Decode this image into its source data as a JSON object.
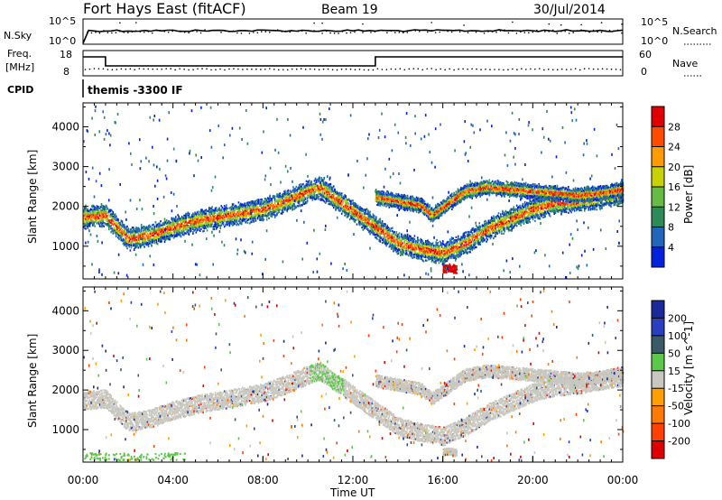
{
  "header": {
    "station": "Fort Hays East (fitACF)",
    "beam": "Beam 19",
    "date": "30/Jul/2014"
  },
  "noise_panel": {
    "left_label": "N.Sky",
    "right_label": "N.Search",
    "left_ticks": [
      "10^5",
      "10^0"
    ],
    "right_ticks": [
      "10^5",
      "10^0"
    ]
  },
  "freq_panel": {
    "left_label_1": "Freq.",
    "left_label_2": "[MHz]",
    "right_label": "Nave",
    "left_ticks": [
      "18",
      "8"
    ],
    "right_ticks": [
      "60",
      "0"
    ]
  },
  "cpid": {
    "label": "CPID",
    "value": "themis -3300 IF"
  },
  "time_axis": {
    "label": "Time UT",
    "ticks": [
      "00:00",
      "04:00",
      "08:00",
      "12:00",
      "16:00",
      "20:00",
      "00:00"
    ]
  },
  "chart_data": [
    {
      "type": "heatmap",
      "name": "power",
      "ylabel": "Slant Range [km]",
      "yticks": [
        1000,
        2000,
        3000,
        4000
      ],
      "ylim": [
        180,
        4600
      ],
      "xlim_hours": [
        0,
        24
      ],
      "colorbar_label": "Power [dB]",
      "colorbar_ticks": [
        "28",
        "24",
        "20",
        "16",
        "12",
        "8",
        "4"
      ],
      "colors": [
        "#0022dd",
        "#2266bb",
        "#2e8b57",
        "#66bb44",
        "#c8d200",
        "#ff9a00",
        "#ff4a00",
        "#e00000"
      ],
      "scatter_bands": [
        {
          "t": [
            0,
            1,
            2,
            3,
            4,
            5,
            6,
            7,
            8,
            9,
            10,
            10.5,
            11,
            11.5,
            12,
            13,
            14,
            15,
            16,
            17,
            18,
            19,
            20,
            21,
            22,
            23,
            24
          ],
          "range": [
            1750,
            1800,
            1200,
            1300,
            1500,
            1650,
            1750,
            1850,
            1950,
            2150,
            2400,
            2500,
            2300,
            2100,
            1900,
            1500,
            1100,
            950,
            850,
            1100,
            1450,
            1700,
            1950,
            2100,
            2150,
            2250,
            2350
          ],
          "width_km": 380
        },
        {
          "t": [
            13,
            14,
            15,
            15.5,
            16,
            17,
            18,
            19,
            20,
            21,
            22,
            23,
            24
          ],
          "range": [
            2250,
            2150,
            2050,
            1800,
            2000,
            2400,
            2500,
            2450,
            2400,
            2350,
            2300,
            2350,
            2450
          ],
          "width_km": 260
        },
        {
          "t": [
            16.0,
            16.3,
            16.6
          ],
          "range": [
            450,
            470,
            430
          ],
          "width_km": 140
        }
      ]
    },
    {
      "type": "heatmap",
      "name": "velocity",
      "ylabel": "Slant Range [km]",
      "yticks": [
        1000,
        2000,
        3000,
        4000
      ],
      "ylim": [
        180,
        4600
      ],
      "xlim_hours": [
        0,
        24
      ],
      "colorbar_label": "Velocity [m s^-1]",
      "colorbar_ticks": [
        "200",
        "100",
        "50",
        "15",
        "-15",
        "-50",
        "-100",
        "-200"
      ],
      "colors": [
        "#1a2a9a",
        "#2a3fbf",
        "#3a5a6a",
        "#5cc84a",
        "#c8c8c0",
        "#ffa000",
        "#ff7a00",
        "#ff4000",
        "#e00000"
      ],
      "dominant_value": "-15 to 15"
    }
  ]
}
